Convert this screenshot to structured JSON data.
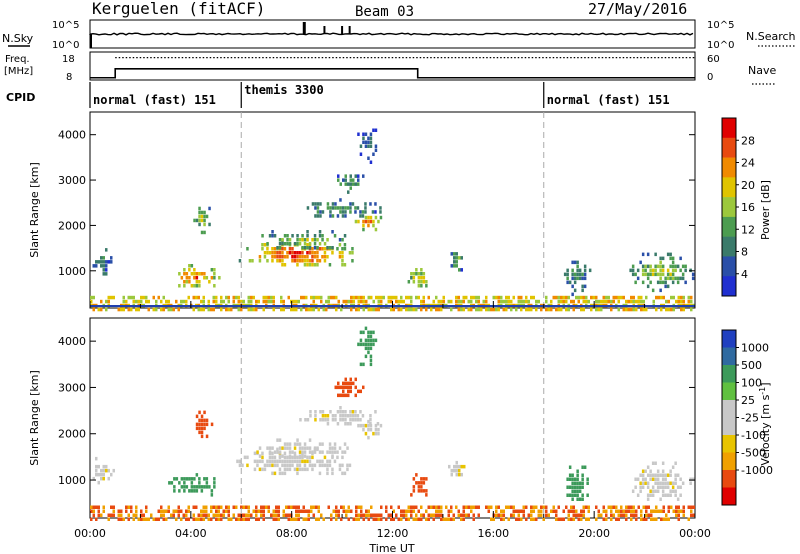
{
  "header": {
    "station": "Kerguelen (fitACF)",
    "beam": "Beam 03",
    "date": "27/May/2016"
  },
  "labels": {
    "nsky": "N.Sky",
    "nsearch": "N.Search",
    "freq_line1": "Freq.",
    "freq_line2": "[MHz]",
    "nave": "Nave",
    "cpid": "CPID",
    "ylabel": "Slant Range [km]",
    "xlabel": "Time UT",
    "power_bar": "Power [dB]",
    "velocity_bar": "Velocity [m s",
    "velocity_exp": "-1",
    "velocity_close": "]"
  },
  "noise_panel": {
    "left_ticks": [
      "10^5",
      "10^0"
    ],
    "right_ticks": [
      "10^5",
      "10^0"
    ]
  },
  "freq_panel": {
    "left_ticks": [
      "18",
      "8"
    ],
    "right_ticks": [
      "60",
      "0"
    ],
    "freq_steps": [
      [
        0.0,
        8.8
      ],
      [
        1.0,
        12.0
      ],
      [
        13.0,
        8.8
      ],
      [
        24.0,
        8.8
      ]
    ],
    "nave_level": 48
  },
  "cpid_segments": [
    {
      "start_hour": 0,
      "label": "normal (fast) 151"
    },
    {
      "start_hour": 6,
      "label": "themis 3300"
    },
    {
      "start_hour": 18,
      "label": "normal (fast) 151"
    }
  ],
  "colors": {
    "power": [
      "#2030d0",
      "#2a4fa8",
      "#3a7a6a",
      "#4c9c50",
      "#9cc83c",
      "#e0c400",
      "#f08a00",
      "#e84a10",
      "#e00000"
    ],
    "velocity": [
      "#e00000",
      "#e84a10",
      "#f0a000",
      "#e8c400",
      "#c8c8c8",
      "#c8c8c8",
      "#60c040",
      "#3c9a5a",
      "#2f6aa0",
      "#2040c0"
    ]
  },
  "chart_data": [
    {
      "type": "heatmap",
      "name": "Power",
      "xlabel": "Time UT",
      "ylabel": "Slant Range [km]",
      "xlim": [
        0,
        24
      ],
      "ylim": [
        180,
        4500
      ],
      "x_ticks": [
        "00:00",
        "04:00",
        "08:00",
        "12:00",
        "16:00",
        "20:00",
        "00:00"
      ],
      "y_ticks": [
        1000,
        2000,
        3000,
        4000
      ],
      "colorbar": {
        "label": "Power [dB]",
        "ticks": [
          "4",
          "8",
          "12",
          "16",
          "20",
          "24",
          "28"
        ],
        "range": [
          0,
          30
        ]
      },
      "echo_regions": [
        {
          "t0": 0.0,
          "t1": 0.9,
          "r0": 900,
          "r1": 1500,
          "value": 8
        },
        {
          "t0": 3.1,
          "t1": 5.2,
          "r0": 650,
          "r1": 1150,
          "value": 22
        },
        {
          "t0": 4.0,
          "t1": 4.8,
          "r0": 1850,
          "r1": 2500,
          "value": 14
        },
        {
          "t0": 5.8,
          "t1": 10.6,
          "r0": 1100,
          "r1": 1700,
          "value": 24
        },
        {
          "t0": 6.4,
          "t1": 10.4,
          "r0": 1500,
          "r1": 1900,
          "value": 14
        },
        {
          "t0": 8.3,
          "t1": 11.6,
          "r0": 2200,
          "r1": 2600,
          "value": 10
        },
        {
          "t0": 10.4,
          "t1": 11.6,
          "r0": 1900,
          "r1": 2300,
          "value": 20
        },
        {
          "t0": 9.7,
          "t1": 10.8,
          "r0": 2750,
          "r1": 3300,
          "value": 10
        },
        {
          "t0": 10.6,
          "t1": 11.3,
          "r0": 3400,
          "r1": 4400,
          "value": 6
        },
        {
          "t0": 12.6,
          "t1": 13.4,
          "r0": 600,
          "r1": 1150,
          "value": 18
        },
        {
          "t0": 14.2,
          "t1": 14.8,
          "r0": 1000,
          "r1": 1500,
          "value": 12
        },
        {
          "t0": 18.7,
          "t1": 19.8,
          "r0": 500,
          "r1": 1400,
          "value": 10
        },
        {
          "t0": 21.3,
          "t1": 24.0,
          "r0": 600,
          "r1": 1400,
          "value": 14
        },
        {
          "t0": 0.0,
          "t1": 24.0,
          "r0": 180,
          "r1": 450,
          "value": 16
        }
      ]
    },
    {
      "type": "heatmap",
      "name": "Velocity",
      "xlabel": "Time UT",
      "ylabel": "Slant Range [km]",
      "xlim": [
        0,
        24
      ],
      "ylim": [
        180,
        4500
      ],
      "x_ticks": [
        "00:00",
        "04:00",
        "08:00",
        "12:00",
        "16:00",
        "20:00",
        "00:00"
      ],
      "y_ticks": [
        1000,
        2000,
        3000,
        4000
      ],
      "colorbar": {
        "label": "Velocity [m s-1]",
        "ticks": [
          "1000",
          "500",
          "100",
          "25",
          "-25",
          "-100",
          "-500",
          "-1000"
        ],
        "range": [
          -1000,
          1000
        ]
      },
      "echo_regions": [
        {
          "t0": 0.0,
          "t1": 0.9,
          "r0": 900,
          "r1": 1500,
          "value": 0
        },
        {
          "t0": 3.1,
          "t1": 5.2,
          "r0": 650,
          "r1": 1150,
          "value": 150
        },
        {
          "t0": 4.0,
          "t1": 4.8,
          "r0": 1850,
          "r1": 2500,
          "value": -200
        },
        {
          "t0": 5.8,
          "t1": 10.6,
          "r0": 1100,
          "r1": 1700,
          "value": 0
        },
        {
          "t0": 6.4,
          "t1": 10.4,
          "r0": 1500,
          "r1": 1900,
          "value": 0
        },
        {
          "t0": 8.3,
          "t1": 11.6,
          "r0": 2200,
          "r1": 2600,
          "value": 0
        },
        {
          "t0": 10.4,
          "t1": 11.6,
          "r0": 1900,
          "r1": 2300,
          "value": 0
        },
        {
          "t0": 9.7,
          "t1": 10.8,
          "r0": 2750,
          "r1": 3300,
          "value": -300
        },
        {
          "t0": 10.6,
          "t1": 11.3,
          "r0": 3400,
          "r1": 4400,
          "value": 200
        },
        {
          "t0": 12.6,
          "t1": 13.4,
          "r0": 600,
          "r1": 1150,
          "value": -300
        },
        {
          "t0": 14.2,
          "t1": 14.8,
          "r0": 1000,
          "r1": 1500,
          "value": 0
        },
        {
          "t0": 18.7,
          "t1": 19.8,
          "r0": 500,
          "r1": 1400,
          "value": 300
        },
        {
          "t0": 21.3,
          "t1": 24.0,
          "r0": 600,
          "r1": 1400,
          "value": 0
        },
        {
          "t0": 0.0,
          "t1": 24.0,
          "r0": 180,
          "r1": 450,
          "value": -100
        }
      ]
    }
  ]
}
